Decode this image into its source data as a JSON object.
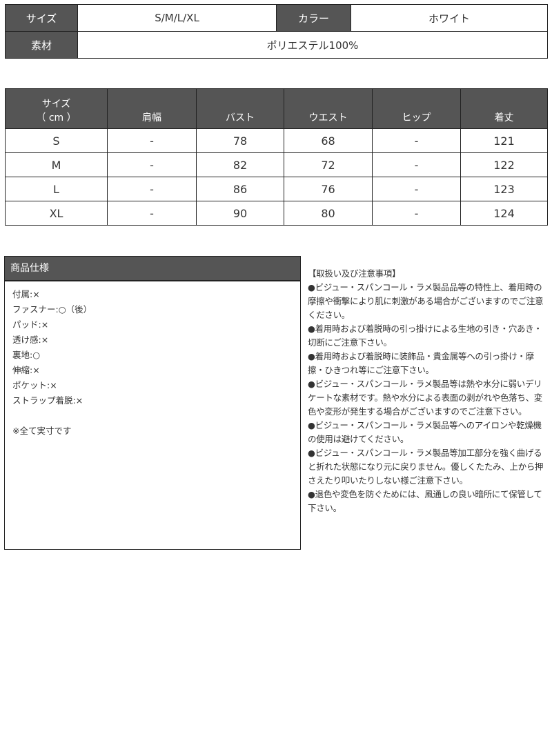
{
  "summary": {
    "size_label": "サイズ",
    "size_value": "S/M/L/XL",
    "color_label": "カラー",
    "color_value": "ホワイト",
    "material_label": "素材",
    "material_value": "ポリエステル100%"
  },
  "size_table": {
    "header_first_line1": "サイズ",
    "header_first_line2": "（ cm ）",
    "headers": [
      "肩幅",
      "バスト",
      "ウエスト",
      "ヒップ",
      "着丈"
    ],
    "rows": [
      [
        "S",
        "-",
        "78",
        "68",
        "-",
        "121"
      ],
      [
        "M",
        "-",
        "82",
        "72",
        "-",
        "122"
      ],
      [
        "L",
        "-",
        "86",
        "76",
        "-",
        "123"
      ],
      [
        "XL",
        "-",
        "90",
        "80",
        "-",
        "124"
      ]
    ]
  },
  "spec": {
    "title": "商品仕様",
    "items": [
      "付属:×",
      "ファスナー:○（後）",
      "パッド:×",
      "透け感:×",
      "裏地:○",
      "伸縮:×",
      "ポケット:×",
      "ストラップ着脱:×",
      "",
      "※全て実寸です"
    ]
  },
  "notes": {
    "title": "【取扱い及び注意事項】",
    "items": [
      "●ビジュー・スパンコール・ラメ製品品等の特性上、着用時の摩擦や衝撃により肌に刺激がある場合がございますのでご注意ください。",
      "●着用時および着脱時の引っ掛けによる生地の引き・穴あき・切断にご注意下さい。",
      "●着用時および着脱時に装飾品・貴金属等への引っ掛け・摩擦・ひきつれ等にご注意下さい。",
      "●ビジュー・スパンコール・ラメ製品等は熱や水分に弱いデリケートな素材です。熱や水分による表面の剥がれや色落ち、変色や変形が発生する場合がございますのでご注意下さい。",
      "●ビジュー・スパンコール・ラメ製品等へのアイロンや乾燥機の使用は避けてください。",
      "●ビジュー・スパンコール・ラメ製品等加工部分を強く曲げると折れた状態になり元に戻りません。優しくたたみ、上から押さえたり叩いたりしない様ご注意下さい。",
      "●退色や変色を防ぐためには、風通しの良い暗所にて保管して下さい。"
    ]
  }
}
